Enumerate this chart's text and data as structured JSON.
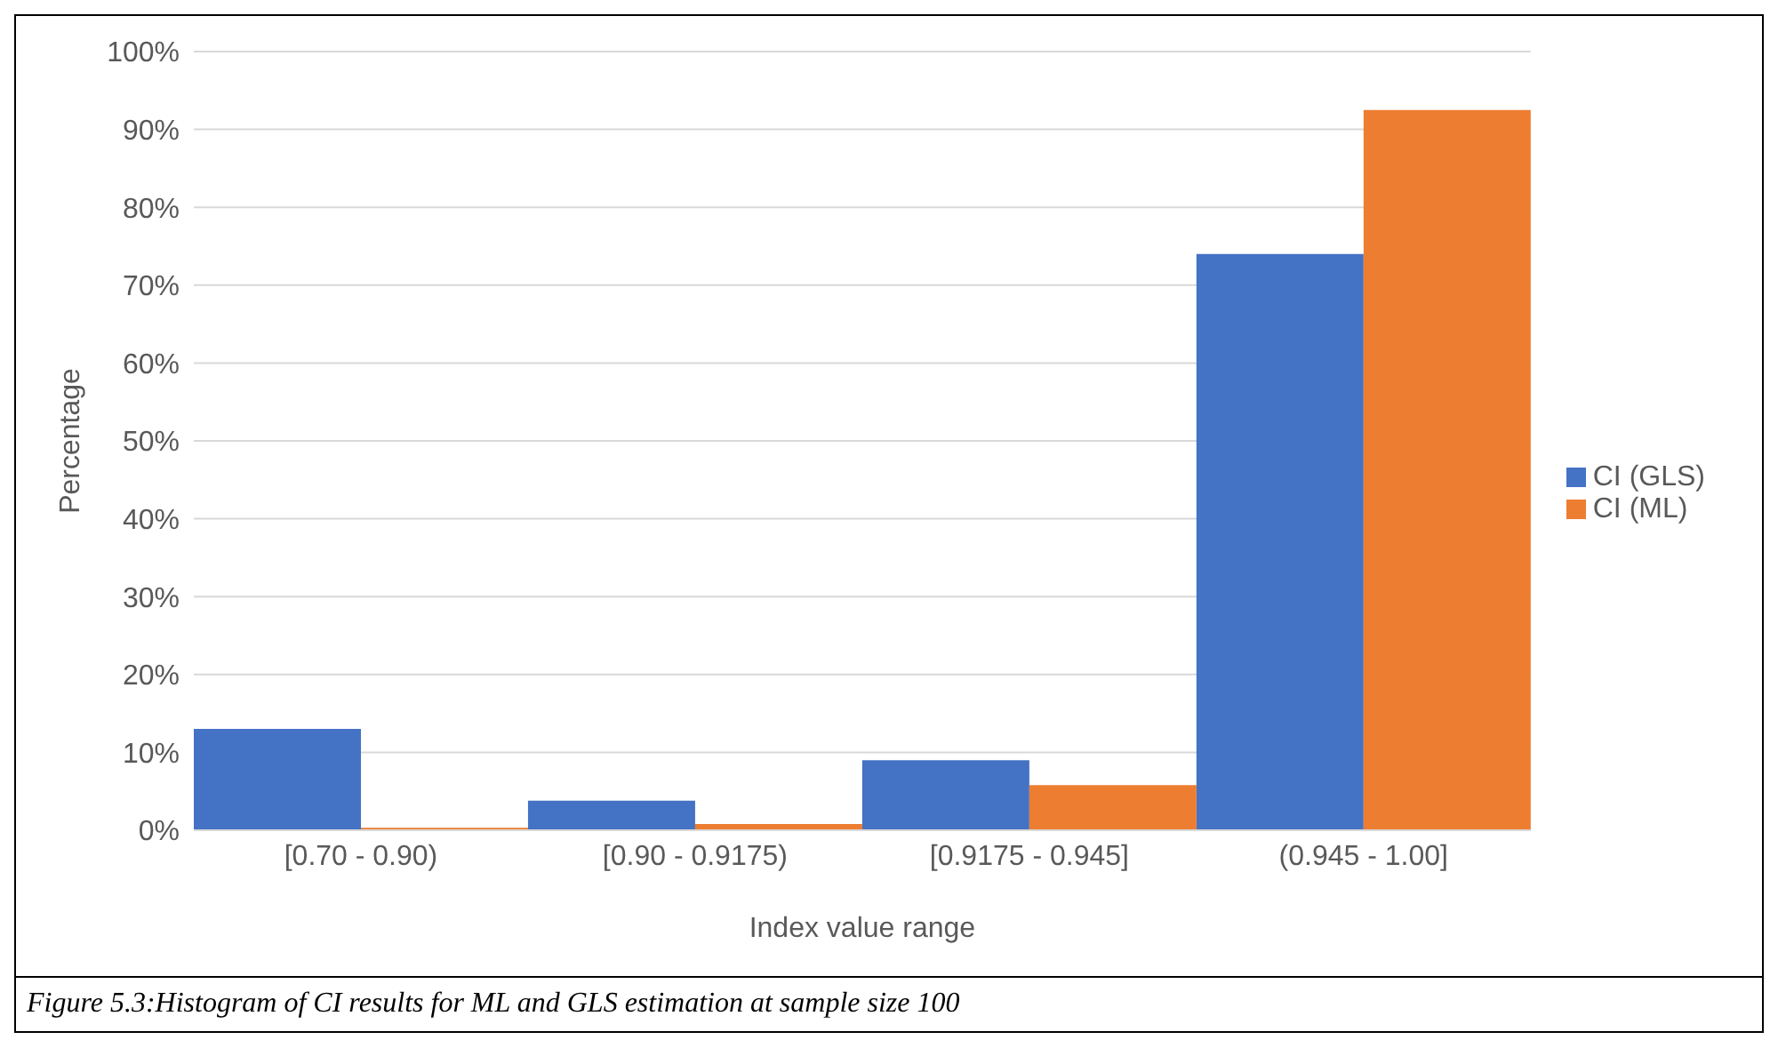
{
  "chart_data": {
    "type": "bar",
    "xlabel": "Index value range",
    "ylabel": "Percentage",
    "categories": [
      "[0.70 - 0.90)",
      "[0.90 - 0.9175)",
      "[0.9175 - 0.945]",
      "(0.945 - 1.00]"
    ],
    "series": [
      {
        "name": "CI (GLS)",
        "color": "#4472c4",
        "values": [
          13,
          3.8,
          9,
          74
        ]
      },
      {
        "name": "CI (ML)",
        "color": "#ed7d31",
        "values": [
          0.3,
          0.8,
          5.8,
          92.5
        ]
      }
    ],
    "ylim": [
      0,
      100
    ],
    "yticks": [
      {
        "value": 0,
        "label": "0%"
      },
      {
        "value": 10,
        "label": "10%"
      },
      {
        "value": 20,
        "label": "20%"
      },
      {
        "value": 30,
        "label": "30%"
      },
      {
        "value": 40,
        "label": "40%"
      },
      {
        "value": 50,
        "label": "50%"
      },
      {
        "value": 60,
        "label": "60%"
      },
      {
        "value": 70,
        "label": "70%"
      },
      {
        "value": 80,
        "label": "80%"
      },
      {
        "value": 90,
        "label": "90%"
      },
      {
        "value": 100,
        "label": "100%"
      }
    ],
    "grid": "y",
    "legend": "right",
    "annotations": [
      "Figure 5.3:Histogram of CI results for ML and GLS estimation at sample size 100"
    ]
  }
}
